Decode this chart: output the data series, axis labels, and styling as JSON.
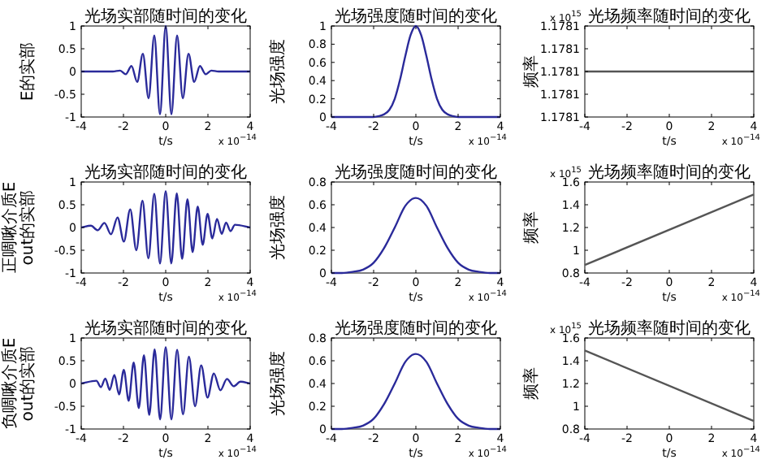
{
  "chart_data": [
    {
      "type": "line",
      "title": "光场实部随时间的变化",
      "xlabel": "t/s",
      "ylabel": "E的实部",
      "annotations": [
        "x 10$^{−14}$"
      ],
      "xlim": [
        -4,
        4
      ],
      "xticks": [
        -4,
        -2,
        0,
        2,
        4
      ],
      "ylim": [
        -1,
        1
      ],
      "yticks": [
        -1,
        -0.5,
        0,
        0.5,
        1
      ],
      "series": [
        {
          "color": "#2a2a9a",
          "x": [
            -4,
            -2.5,
            -2.16,
            -1.89,
            -1.62,
            -1.35,
            -1.08,
            -0.81,
            -0.54,
            -0.27,
            0,
            0.27,
            0.54,
            0.81,
            1.08,
            1.35,
            1.62,
            1.89,
            2.16,
            2.5,
            4
          ],
          "values": [
            0,
            0,
            0.02,
            -0.06,
            0.12,
            -0.23,
            0.39,
            -0.59,
            0.79,
            -0.94,
            1,
            -0.94,
            0.79,
            -0.59,
            0.39,
            -0.23,
            0.12,
            -0.06,
            0.02,
            0,
            0
          ]
        }
      ]
    },
    {
      "type": "line",
      "title": "光场强度随时间的变化",
      "xlabel": "t/s",
      "ylabel": "光场强度",
      "annotations": [
        "x 10$^{−14}$"
      ],
      "xlim": [
        -4,
        4
      ],
      "xticks": [
        -4,
        -2,
        0,
        2,
        4
      ],
      "ylim": [
        0,
        1
      ],
      "yticks": [
        0,
        0.2,
        0.4,
        0.6,
        0.8,
        1
      ],
      "series": [
        {
          "color": "#2a2a9a",
          "x": [
            -4,
            -2,
            -1.75,
            -1.5,
            -1.25,
            -1,
            -0.75,
            -0.5,
            -0.25,
            0,
            0.25,
            0.5,
            0.75,
            1,
            1.25,
            1.5,
            1.75,
            2,
            4
          ],
          "values": [
            0,
            0,
            0.01,
            0.03,
            0.08,
            0.2,
            0.41,
            0.67,
            0.9,
            1,
            0.9,
            0.67,
            0.41,
            0.2,
            0.08,
            0.03,
            0.01,
            0,
            0
          ]
        }
      ]
    },
    {
      "type": "line",
      "title": "光场频率随时间的变化",
      "xlabel": "t/s",
      "ylabel": "频率",
      "annotations": [
        "x 10$^{−14}$",
        "x 10$^{15}$"
      ],
      "xlim": [
        -4,
        4
      ],
      "xticks": [
        -4,
        -2,
        0,
        2,
        4
      ],
      "ylim": [
        1.17806,
        1.17814
      ],
      "yticks": [
        {
          "value": 1.17806,
          "label": "1.1781"
        },
        {
          "value": 1.17808,
          "label": "1.1781"
        },
        {
          "value": 1.1781,
          "label": "1.1781"
        },
        {
          "value": 1.17812,
          "label": "1.1781"
        },
        {
          "value": 1.17814,
          "label": "1.1781"
        }
      ],
      "series": [
        {
          "color": "#555555",
          "x": [
            -4,
            4
          ],
          "values": [
            1.1781,
            1.1781
          ]
        }
      ]
    },
    {
      "type": "line",
      "title": "光场实部随时间的变化",
      "xlabel": "t/s",
      "ylabel": "正啁啾介质Eout的实部",
      "annotations": [
        "x 10$^{−14}$"
      ],
      "xlim": [
        -4,
        4
      ],
      "xticks": [
        -4,
        -2,
        0,
        2,
        4
      ],
      "ylim": [
        -1,
        1
      ],
      "yticks": [
        -1,
        -0.5,
        0,
        0.5,
        1
      ],
      "series": [
        {
          "color": "#2a2a9a",
          "x": [
            -4,
            -3.54,
            -3.22,
            -2.9,
            -2.59,
            -2.28,
            -1.98,
            -1.68,
            -1.39,
            -1.1,
            -0.82,
            -0.54,
            -0.27,
            0,
            0.265,
            0.524,
            0.779,
            1.03,
            1.275,
            1.516,
            1.752,
            1.983,
            2.21,
            2.43,
            2.65,
            2.86,
            3.07,
            3.28,
            4
          ],
          "values": [
            0,
            0.04,
            -0.06,
            0.1,
            -0.15,
            0.22,
            -0.31,
            0.4,
            -0.5,
            0.59,
            -0.68,
            0.74,
            -0.79,
            0.8,
            -0.79,
            0.75,
            -0.69,
            0.62,
            -0.54,
            0.46,
            -0.38,
            0.3,
            -0.24,
            0.19,
            -0.14,
            0.11,
            -0.08,
            0.06,
            0
          ]
        }
      ]
    },
    {
      "type": "line",
      "title": "光场强度随时间的变化",
      "xlabel": "t/s",
      "ylabel": "光场强度",
      "annotations": [
        "x 10$^{−14}$"
      ],
      "xlim": [
        -4,
        4
      ],
      "xticks": [
        -4,
        -2,
        0,
        2,
        4
      ],
      "ylim": [
        0,
        0.8
      ],
      "yticks": [
        0,
        0.2,
        0.4,
        0.6,
        0.8
      ],
      "series": [
        {
          "color": "#2a2a9a",
          "x": [
            -4,
            -3.5,
            -3,
            -2.5,
            -2,
            -1.5,
            -1,
            -0.5,
            0,
            0.5,
            1,
            1.5,
            2,
            2.5,
            3,
            3.5,
            4
          ],
          "values": [
            0,
            0,
            0.01,
            0.03,
            0.09,
            0.22,
            0.4,
            0.59,
            0.66,
            0.59,
            0.4,
            0.22,
            0.09,
            0.03,
            0.01,
            0,
            0
          ]
        }
      ]
    },
    {
      "type": "line",
      "title": "光场频率随时间的变化",
      "xlabel": "t/s",
      "ylabel": "频率",
      "annotations": [
        "x 10$^{−14}$",
        "x 10$^{15}$"
      ],
      "xlim": [
        -4,
        4
      ],
      "xticks": [
        -4,
        -2,
        0,
        2,
        4
      ],
      "ylim": [
        0.8,
        1.6
      ],
      "yticks": [
        0.8,
        1,
        1.2,
        1.4,
        1.6
      ],
      "series": [
        {
          "color": "#555555",
          "x": [
            -4,
            4
          ],
          "values": [
            0.87,
            1.49
          ]
        }
      ]
    },
    {
      "type": "line",
      "title": "光场实部随时间的变化",
      "xlabel": "t/s",
      "ylabel": "负啁啾介质Eout的实部",
      "annotations": [
        "x 10$^{−14}$"
      ],
      "xlim": [
        -4,
        4
      ],
      "xticks": [
        -4,
        -2,
        0,
        2,
        4
      ],
      "ylim": [
        -1,
        1
      ],
      "yticks": [
        -1,
        -0.5,
        0,
        0.5,
        1
      ],
      "series": [
        {
          "color": "#2a2a9a",
          "x": [
            -4,
            -3.28,
            -3.07,
            -2.86,
            -2.65,
            -2.43,
            -2.21,
            -1.983,
            -1.752,
            -1.516,
            -1.275,
            -1.03,
            -0.779,
            -0.524,
            -0.265,
            0,
            0.27,
            0.54,
            0.82,
            1.1,
            1.39,
            1.68,
            1.98,
            2.28,
            2.59,
            2.9,
            3.22,
            3.54,
            4
          ],
          "values": [
            0,
            0.06,
            -0.08,
            0.11,
            -0.14,
            0.19,
            -0.24,
            0.3,
            -0.38,
            0.46,
            -0.54,
            0.62,
            -0.69,
            0.75,
            -0.79,
            0.8,
            -0.79,
            0.74,
            -0.68,
            0.59,
            -0.5,
            0.4,
            -0.31,
            0.22,
            -0.15,
            0.1,
            -0.06,
            0.04,
            0
          ]
        }
      ]
    },
    {
      "type": "line",
      "title": "光场强度随时间的变化",
      "xlabel": "t/s",
      "ylabel": "光场强度",
      "annotations": [
        "x 10$^{−14}$"
      ],
      "xlim": [
        -4,
        4
      ],
      "xticks": [
        -4,
        -2,
        0,
        2,
        4
      ],
      "ylim": [
        0,
        0.8
      ],
      "yticks": [
        0,
        0.2,
        0.4,
        0.6,
        0.8
      ],
      "series": [
        {
          "color": "#2a2a9a",
          "x": [
            -4,
            -3.5,
            -3,
            -2.5,
            -2,
            -1.5,
            -1,
            -0.5,
            0,
            0.5,
            1,
            1.5,
            2,
            2.5,
            3,
            3.5,
            4
          ],
          "values": [
            0,
            0,
            0.01,
            0.03,
            0.09,
            0.22,
            0.4,
            0.59,
            0.66,
            0.59,
            0.4,
            0.22,
            0.09,
            0.03,
            0.01,
            0,
            0
          ]
        }
      ]
    },
    {
      "type": "line",
      "title": "光场频率随时间的变化",
      "xlabel": "t/s",
      "ylabel": "频率",
      "annotations": [
        "x 10$^{−14}$",
        "x 10$^{15}$"
      ],
      "xlim": [
        -4,
        4
      ],
      "xticks": [
        -4,
        -2,
        0,
        2,
        4
      ],
      "ylim": [
        0.8,
        1.6
      ],
      "yticks": [
        0.8,
        1,
        1.2,
        1.4,
        1.6
      ],
      "series": [
        {
          "color": "#555555",
          "x": [
            -4,
            4
          ],
          "values": [
            1.49,
            0.87
          ]
        }
      ]
    }
  ]
}
